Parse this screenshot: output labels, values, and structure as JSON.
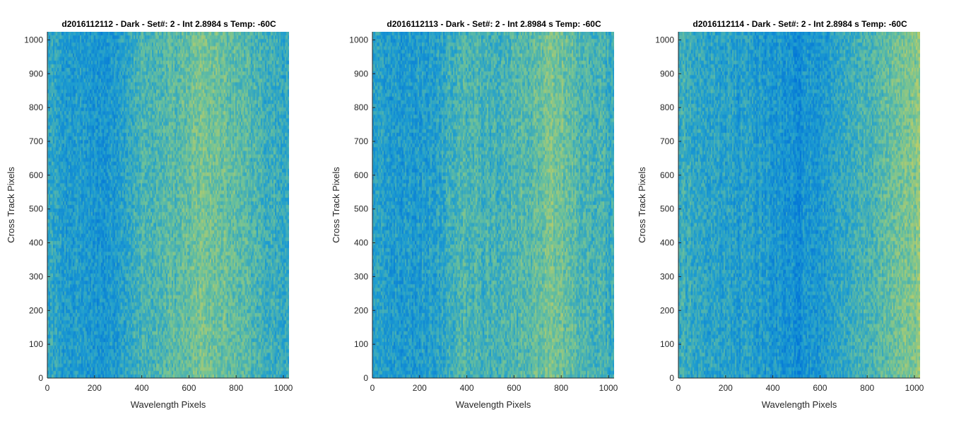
{
  "chart_data": [
    {
      "type": "heatmap",
      "title": "d2016112112 - Dark - Set#: 2 - Int 2.8984 s Temp: -60C",
      "xlabel": "Wavelength Pixels",
      "ylabel": "Cross Track Pixels",
      "xlim": [
        0,
        1024
      ],
      "ylim": [
        0,
        1024
      ],
      "xticks": [
        0,
        200,
        400,
        600,
        800,
        1000
      ],
      "yticks": [
        0,
        100,
        200,
        300,
        400,
        500,
        600,
        700,
        800,
        900,
        1000
      ],
      "colormap": [
        "#0072d8",
        "#1e9dd0",
        "#6cc19a",
        "#c4cf62"
      ],
      "intensity_profile_x": [
        0,
        128,
        256,
        384,
        512,
        640,
        768,
        896,
        1024
      ],
      "intensity_profile": [
        0.42,
        0.32,
        0.28,
        0.5,
        0.56,
        0.7,
        0.66,
        0.5,
        0.44
      ]
    },
    {
      "type": "heatmap",
      "title": "d2016112113 - Dark - Set#: 2 - Int 2.8984 s Temp: -60C",
      "xlabel": "Wavelength Pixels",
      "ylabel": "Cross Track Pixels",
      "xlim": [
        0,
        1024
      ],
      "ylim": [
        0,
        1024
      ],
      "xticks": [
        0,
        200,
        400,
        600,
        800,
        1000
      ],
      "yticks": [
        0,
        100,
        200,
        300,
        400,
        500,
        600,
        700,
        800,
        900,
        1000
      ],
      "colormap": [
        "#0072d8",
        "#1e9dd0",
        "#6cc19a",
        "#c4cf62"
      ],
      "intensity_profile_x": [
        0,
        128,
        256,
        384,
        512,
        640,
        768,
        896,
        1024
      ],
      "intensity_profile": [
        0.4,
        0.3,
        0.35,
        0.58,
        0.48,
        0.56,
        0.72,
        0.56,
        0.46
      ]
    },
    {
      "type": "heatmap",
      "title": "d2016112114 - Dark - Set#: 2 - Int 2.8984 s Temp: -60C",
      "xlabel": "Wavelength Pixels",
      "ylabel": "Cross Track Pixels",
      "xlim": [
        0,
        1024
      ],
      "ylim": [
        0,
        1024
      ],
      "xticks": [
        0,
        200,
        400,
        600,
        800,
        1000
      ],
      "yticks": [
        0,
        100,
        200,
        300,
        400,
        500,
        600,
        700,
        800,
        900,
        1000
      ],
      "colormap": [
        "#0072d8",
        "#1e9dd0",
        "#6cc19a",
        "#c4cf62"
      ],
      "intensity_profile_x": [
        0,
        128,
        256,
        384,
        512,
        640,
        768,
        896,
        1024
      ],
      "intensity_profile": [
        0.46,
        0.4,
        0.36,
        0.3,
        0.22,
        0.36,
        0.5,
        0.62,
        0.78
      ]
    }
  ]
}
